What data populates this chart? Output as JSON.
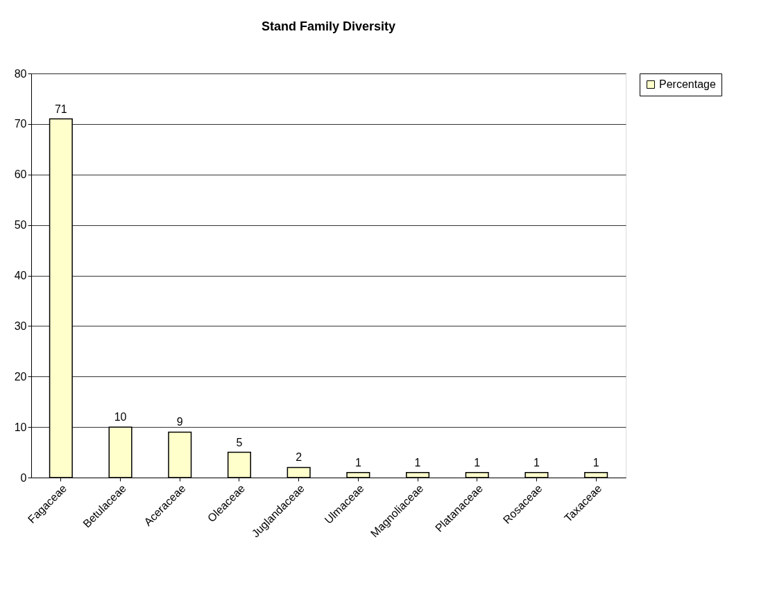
{
  "chart_data": {
    "type": "bar",
    "title": "Stand Family Diversity",
    "categories": [
      "Fagaceae",
      "Betulaceae",
      "Aceraceae",
      "Oleaceae",
      "Juglandaceae",
      "Ulmaceae",
      "Magnoliaceae",
      "Platanaceae",
      "Rosaceae",
      "Taxaceae"
    ],
    "series": [
      {
        "name": "Percentage",
        "color": "#ffffcc",
        "values": [
          71,
          10,
          9,
          5,
          2,
          1,
          1,
          1,
          1,
          1
        ]
      }
    ],
    "ylim": [
      0,
      80
    ],
    "yticks": [
      0,
      10,
      20,
      30,
      40,
      50,
      60,
      70,
      80
    ],
    "grid": "y",
    "legend": "right",
    "data_labels": true
  }
}
